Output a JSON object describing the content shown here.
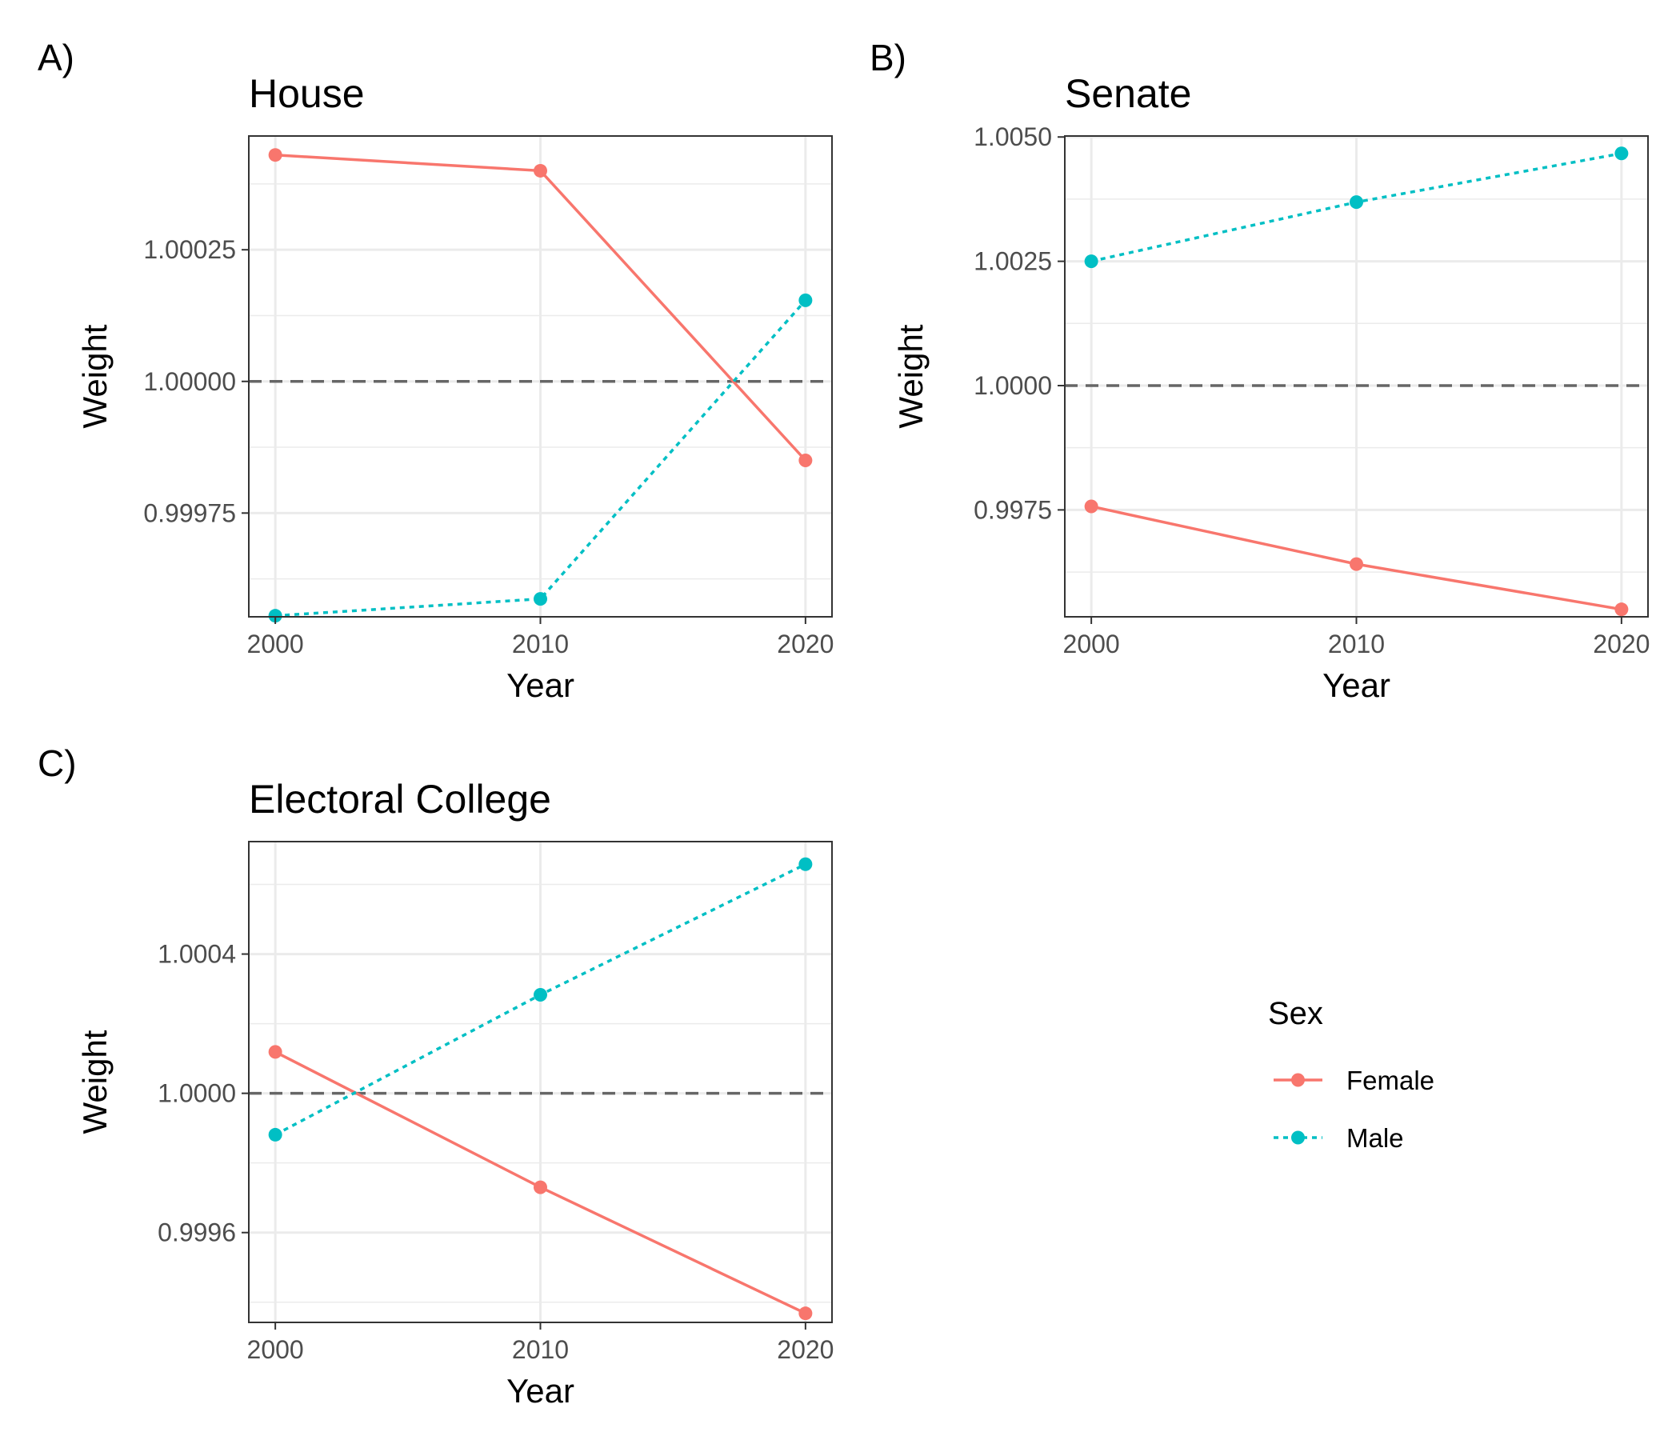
{
  "chart_data": [
    {
      "type": "line",
      "tag": "A)",
      "title": "House",
      "xlabel": "Year",
      "ylabel": "Weight",
      "x": [
        2000,
        2010,
        2020
      ],
      "xlim": [
        1999,
        2021
      ],
      "xticks": [
        2000,
        2010,
        2020
      ],
      "ylim": [
        0.999553,
        1.000466
      ],
      "yticks": [
        0.99975,
        1.0,
        1.00025
      ],
      "ytick_labels": [
        "0.99975",
        "1.00000",
        "1.00025"
      ],
      "minor_yticks": [
        0.999625,
        0.999875,
        1.000125,
        1.000375
      ],
      "reference_line": 1.0,
      "series": [
        {
          "name": "Female",
          "values": [
            1.00043,
            1.0004,
            0.99985
          ]
        },
        {
          "name": "Male",
          "values": [
            0.999555,
            0.999587,
            1.000154
          ]
        }
      ]
    },
    {
      "type": "line",
      "tag": "B)",
      "title": "Senate",
      "xlabel": "Year",
      "ylabel": "Weight",
      "x": [
        2000,
        2010,
        2020
      ],
      "xlim": [
        1999,
        2021
      ],
      "xticks": [
        2000,
        2010,
        2020
      ],
      "ylim": [
        0.99535,
        1.00502
      ],
      "yticks": [
        0.9975,
        1.0,
        1.0025,
        1.005
      ],
      "ytick_labels": [
        "0.9975",
        "1.0000",
        "1.0025",
        "1.0050"
      ],
      "minor_yticks": [
        0.99625,
        0.99875,
        1.00125,
        1.00375
      ],
      "reference_line": 1.0,
      "series": [
        {
          "name": "Female",
          "values": [
            0.99757,
            0.99641,
            0.9955
          ]
        },
        {
          "name": "Male",
          "values": [
            1.0025,
            1.00369,
            1.00467
          ]
        }
      ]
    },
    {
      "type": "line",
      "tag": "C)",
      "title": "Electoral College",
      "xlabel": "Year",
      "ylabel": "Weight",
      "x": [
        2000,
        2010,
        2020
      ],
      "xlim": [
        1999,
        2021
      ],
      "xticks": [
        2000,
        2010,
        2020
      ],
      "ylim": [
        0.999342,
        1.000723
      ],
      "yticks": [
        0.9996,
        1.0,
        1.0004
      ],
      "ytick_labels": [
        "0.9996",
        "1.0000",
        "1.0004"
      ],
      "minor_yticks": [
        0.9994,
        0.9998,
        1.0002,
        1.0006
      ],
      "reference_line": 1.0,
      "series": [
        {
          "name": "Female",
          "values": [
            1.000119,
            0.99973,
            0.999368
          ]
        },
        {
          "name": "Male",
          "values": [
            0.999881,
            1.000283,
            1.000658
          ]
        }
      ]
    }
  ],
  "legend": {
    "title": "Sex",
    "entries": [
      "Female",
      "Male"
    ]
  },
  "colors": {
    "Female": "#F8766D",
    "Male": "#00BFC4",
    "reference_line": "#666666",
    "grid": "#ebebeb",
    "panel_border": "#333333"
  }
}
